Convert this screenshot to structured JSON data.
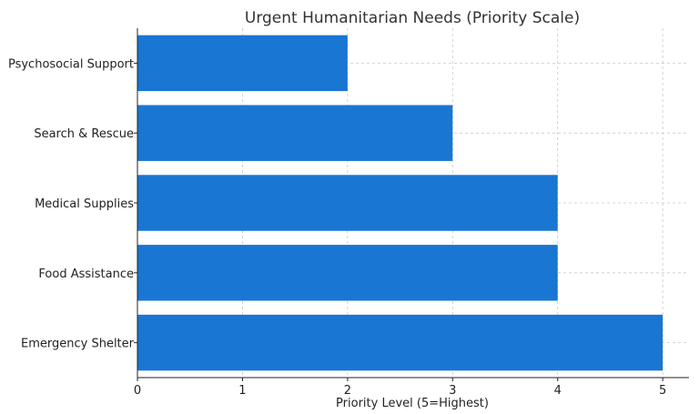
{
  "chart_data": {
    "type": "bar",
    "orientation": "horizontal",
    "title": "Urgent Humanitarian Needs (Priority Scale)",
    "xlabel": "Priority Level (5=Highest)",
    "ylabel": "",
    "categories": [
      "Emergency Shelter",
      "Food Assistance",
      "Medical Supplies",
      "Search & Rescue",
      "Psychosocial Support"
    ],
    "values": [
      5,
      4,
      4,
      3,
      2
    ],
    "xlim": [
      0,
      5.25
    ],
    "xticks": [
      "0",
      "1",
      "2",
      "3",
      "4",
      "5"
    ],
    "grid": true,
    "bar_color": "#1976d2"
  }
}
